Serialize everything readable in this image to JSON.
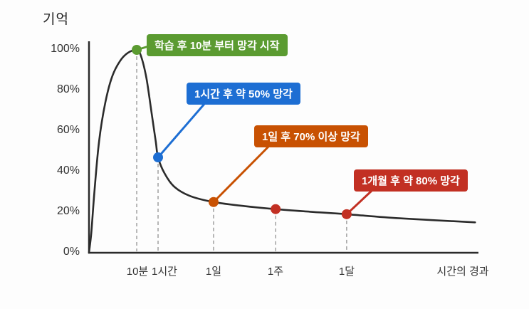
{
  "chart_data": {
    "type": "line",
    "ylabel": "기억",
    "xlabel": "시간의 경과",
    "ylim": [
      0,
      100
    ],
    "grid": false,
    "legend": false,
    "y_ticks": [
      "100%",
      "80%",
      "60%",
      "40%",
      "20%",
      "0%"
    ],
    "x_ticks": [
      "10분",
      "1시간",
      "1일",
      "1주",
      "1달"
    ],
    "curve": {
      "name": "retention-curve",
      "color": "#2b2b2b",
      "points": [
        [
          0.0,
          0
        ],
        [
          0.006,
          10
        ],
        [
          0.014,
          30
        ],
        [
          0.026,
          55
        ],
        [
          0.042,
          74
        ],
        [
          0.06,
          87
        ],
        [
          0.08,
          94.5
        ],
        [
          0.1,
          98.5
        ],
        [
          0.123,
          100
        ],
        [
          0.134,
          97
        ],
        [
          0.148,
          86
        ],
        [
          0.162,
          68
        ],
        [
          0.172,
          55
        ],
        [
          0.178,
          47
        ],
        [
          0.195,
          39
        ],
        [
          0.22,
          32.5
        ],
        [
          0.26,
          28
        ],
        [
          0.321,
          25
        ],
        [
          0.4,
          23
        ],
        [
          0.481,
          21.5
        ],
        [
          0.57,
          20.2
        ],
        [
          0.664,
          19
        ],
        [
          0.8,
          17
        ],
        [
          0.995,
          15
        ]
      ]
    },
    "markers": [
      {
        "label": "10분",
        "x": 0.123,
        "retention": 100,
        "color": "#5b9b31"
      },
      {
        "label": "1시간",
        "x": 0.178,
        "retention": 47,
        "color": "#1d6ed3"
      },
      {
        "label": "1일",
        "x": 0.321,
        "retention": 25,
        "color": "#c85102"
      },
      {
        "label": "1주",
        "x": 0.481,
        "retention": 21.5,
        "color": "#c23023"
      },
      {
        "label": "1달",
        "x": 0.664,
        "retention": 19,
        "color": "#c23023"
      }
    ],
    "annotations": [
      {
        "text": "학습 후 10분 부터 망각 시작",
        "color": "#5b9b31",
        "marker_index": 0
      },
      {
        "text": "1시간 후 약 50% 망각",
        "color": "#1d6ed3",
        "marker_index": 1
      },
      {
        "text": "1일 후 70% 이상 망각",
        "color": "#c85102",
        "marker_index": 2
      },
      {
        "text": "1개월 후 약 80% 망각",
        "color": "#c23023",
        "marker_index": 4
      }
    ]
  }
}
